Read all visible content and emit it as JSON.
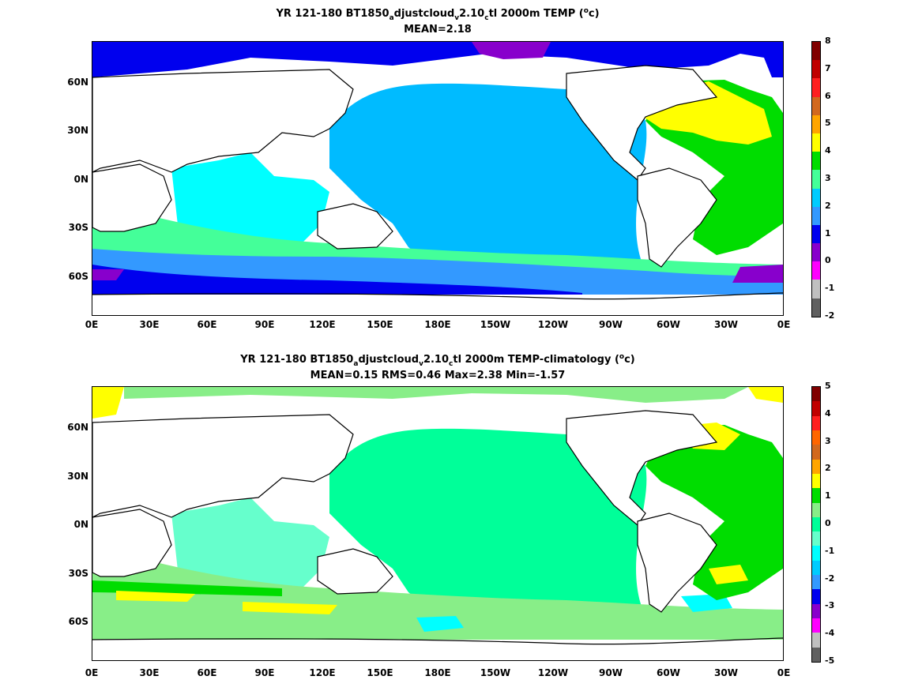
{
  "panels": [
    {
      "title_parts": {
        "a": "YR 121-180 BT1850",
        "s1": "a",
        "b": "djustcloud",
        "s2": "v",
        "c": "2.10",
        "s3": "c",
        "d": "tl 2000m TEMP (",
        "sup": "o",
        "e": "c)"
      },
      "subtitle": "MEAN=2.18",
      "colorbar": {
        "labels": [
          "8",
          "7",
          "6",
          "5",
          "4",
          "3",
          "2",
          "1",
          "0",
          "-1",
          "-2"
        ],
        "colors": [
          "#800000",
          "#c00000",
          "#ff2020",
          "#d2691e",
          "#ffa500",
          "#ffff00",
          "#00dd00",
          "#44ff99",
          "#00ccff",
          "#3399ff",
          "#0000ee",
          "#8800cc",
          "#ff00ff",
          "#c0c0c0",
          "#606060"
        ]
      }
    },
    {
      "title_parts": {
        "a": "YR 121-180 BT1850",
        "s1": "a",
        "b": "djustcloud",
        "s2": "v",
        "c": "2.10",
        "s3": "c",
        "d": "tl 2000m TEMP-climatology (",
        "sup": "o",
        "e": "c)"
      },
      "subtitle": "MEAN=0.15   RMS=0.46   Max=2.38   Min=-1.57",
      "colorbar": {
        "labels": [
          "5",
          "4",
          "3",
          "2",
          "1",
          "0",
          "-1",
          "-2",
          "-3",
          "-4",
          "-5"
        ],
        "colors": [
          "#800000",
          "#c00000",
          "#ff2020",
          "#ff6600",
          "#d2691e",
          "#ffa500",
          "#ffff00",
          "#00dd00",
          "#88ee88",
          "#00ff99",
          "#66ffcc",
          "#00ffff",
          "#00ccff",
          "#3399ff",
          "#0000ee",
          "#8800cc",
          "#ff00ff",
          "#c0c0c0",
          "#606060"
        ]
      }
    }
  ],
  "axes": {
    "lat_labels": [
      "60N",
      "30N",
      "0N",
      "30S",
      "60S"
    ],
    "lon_labels": [
      "0E",
      "30E",
      "60E",
      "90E",
      "120E",
      "150E",
      "180E",
      "150W",
      "120W",
      "90W",
      "60W",
      "30W",
      "0E"
    ]
  }
}
